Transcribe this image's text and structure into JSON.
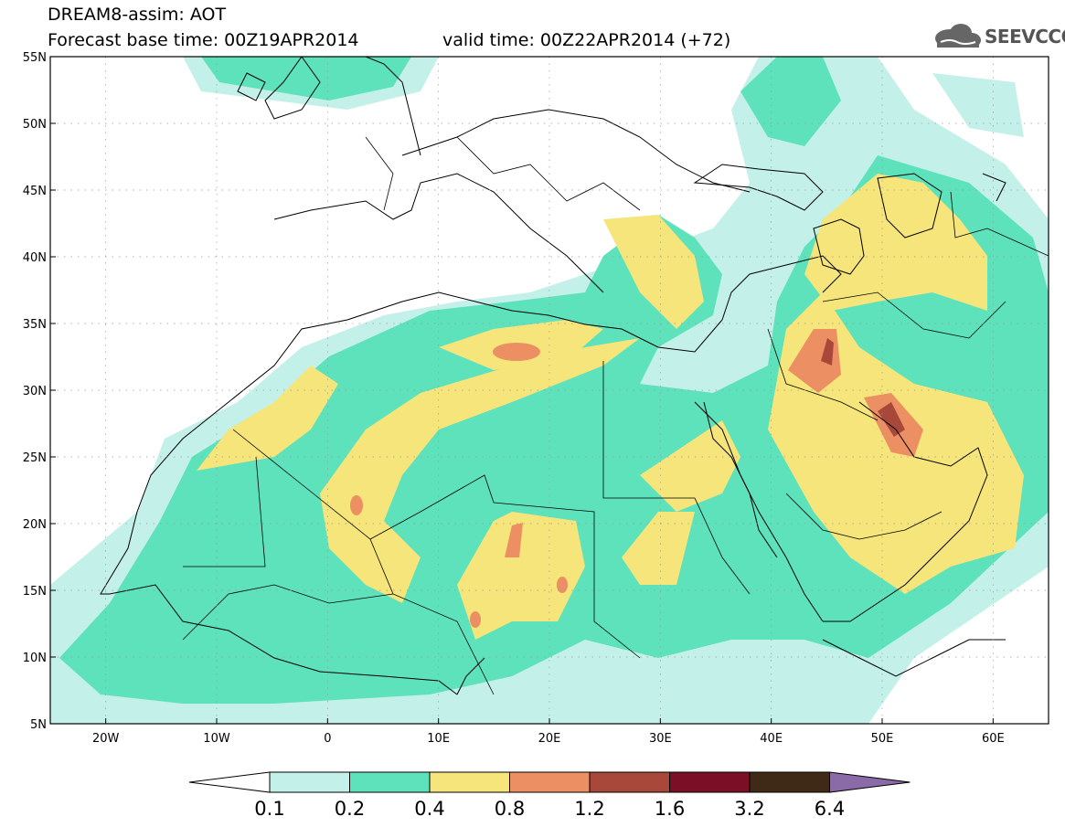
{
  "title": {
    "line1": "DREAM8-assim: AOT",
    "line2": "Forecast base time: 00Z19APR2014",
    "valid": "valid time: 00Z22APR2014 (+72)"
  },
  "logo": {
    "text": "SEEVCCC",
    "icon": "cloud-icon"
  },
  "map": {
    "lon_range": [
      -25,
      65
    ],
    "lat_range": [
      5,
      55
    ],
    "lat_ticks": [
      {
        "value": 55,
        "label": "55N"
      },
      {
        "value": 50,
        "label": "50N"
      },
      {
        "value": 45,
        "label": "45N"
      },
      {
        "value": 40,
        "label": "40N"
      },
      {
        "value": 35,
        "label": "35N"
      },
      {
        "value": 30,
        "label": "30N"
      },
      {
        "value": 25,
        "label": "25N"
      },
      {
        "value": 20,
        "label": "20N"
      },
      {
        "value": 15,
        "label": "15N"
      },
      {
        "value": 10,
        "label": "10N"
      },
      {
        "value": 5,
        "label": "5N"
      }
    ],
    "lon_ticks": [
      {
        "value": -20,
        "label": "20W"
      },
      {
        "value": -10,
        "label": "10W"
      },
      {
        "value": 0,
        "label": "0"
      },
      {
        "value": 10,
        "label": "10E"
      },
      {
        "value": 20,
        "label": "20E"
      },
      {
        "value": 30,
        "label": "30E"
      },
      {
        "value": 40,
        "label": "40E"
      },
      {
        "value": 50,
        "label": "50E"
      },
      {
        "value": 60,
        "label": "60E"
      }
    ],
    "grid": "dotted"
  },
  "colorbar": {
    "levels": [
      "0.1",
      "0.2",
      "0.4",
      "0.8",
      "1.2",
      "1.6",
      "3.2",
      "6.4"
    ],
    "colors": [
      "#ffffff",
      "#c4f0ea",
      "#5ee2bc",
      "#f5e57a",
      "#ec8f62",
      "#a8483a",
      "#7a0f25",
      "#3e2a16",
      "#8b6aa8"
    ]
  }
}
